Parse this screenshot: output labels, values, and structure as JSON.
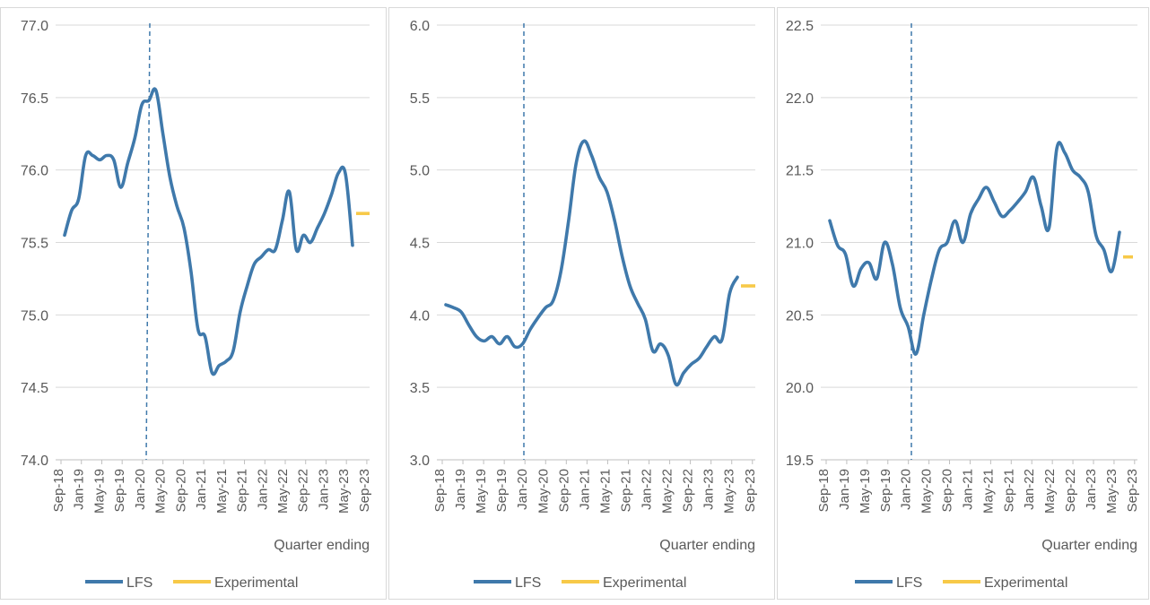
{
  "colors": {
    "lfs": "#3f79ab",
    "experimental": "#f7c948",
    "grid": "#d9d9d9",
    "axis_text": "#595959",
    "vline": "#3f79ab",
    "panel_border": "#d9d9d9"
  },
  "chart_data": [
    {
      "type": "line",
      "title": "",
      "xlabel": "Quarter ending",
      "ylabel": "",
      "ylim": [
        74.0,
        77.0
      ],
      "y_ticks": [
        "74.0",
        "74.5",
        "75.0",
        "75.5",
        "76.0",
        "76.5",
        "77.0"
      ],
      "x_tick_labels": [
        "Sep-18",
        "Jan-19",
        "May-19",
        "Sep-19",
        "Jan-20",
        "May-20",
        "Sep-20",
        "Jan-21",
        "May-21",
        "Sep-21",
        "Jan-22",
        "May-22",
        "Sep-22",
        "Jan-23",
        "May-23",
        "Sep-23"
      ],
      "grid": true,
      "legend_position": "bottom",
      "legend": [
        "LFS",
        "Experimental"
      ],
      "reference_line_at": "Mar-20",
      "series": [
        {
          "name": "LFS",
          "values": [
            75.55,
            75.72,
            75.8,
            76.1,
            76.1,
            76.07,
            76.1,
            76.07,
            75.88,
            76.05,
            76.22,
            76.45,
            76.48,
            76.55,
            76.25,
            75.95,
            75.75,
            75.6,
            75.3,
            74.9,
            74.85,
            74.6,
            74.65,
            74.68,
            74.75,
            75.02,
            75.2,
            75.35,
            75.4,
            75.45,
            75.45,
            75.65,
            75.85,
            75.45,
            75.55,
            75.5,
            75.6,
            75.7,
            75.83,
            75.98,
            75.97,
            75.48
          ]
        },
        {
          "name": "Experimental",
          "values": [
            75.7
          ]
        }
      ]
    },
    {
      "type": "line",
      "title": "",
      "xlabel": "Quarter ending",
      "ylabel": "",
      "ylim": [
        3.0,
        6.0
      ],
      "y_ticks": [
        "3.0",
        "3.5",
        "4.0",
        "4.5",
        "5.0",
        "5.5",
        "6.0"
      ],
      "x_tick_labels": [
        "Sep-18",
        "Jan-19",
        "May-19",
        "Sep-19",
        "Jan-20",
        "May-20",
        "Sep-20",
        "Jan-21",
        "May-21",
        "Sep-21",
        "Jan-22",
        "May-22",
        "Sep-22",
        "Jan-23",
        "May-23",
        "Sep-23"
      ],
      "grid": true,
      "legend_position": "bottom",
      "legend": [
        "LFS",
        "Experimental"
      ],
      "reference_line_at": "Mar-20",
      "series": [
        {
          "name": "LFS",
          "values": [
            4.07,
            4.05,
            4.02,
            3.93,
            3.85,
            3.82,
            3.85,
            3.8,
            3.85,
            3.78,
            3.8,
            3.9,
            3.98,
            4.05,
            4.1,
            4.3,
            4.65,
            5.05,
            5.2,
            5.1,
            4.95,
            4.85,
            4.65,
            4.4,
            4.2,
            4.08,
            3.97,
            3.75,
            3.8,
            3.72,
            3.52,
            3.6,
            3.66,
            3.7,
            3.78,
            3.85,
            3.83,
            4.15,
            4.26
          ]
        },
        {
          "name": "Experimental",
          "values": [
            4.2
          ]
        }
      ]
    },
    {
      "type": "line",
      "title": "",
      "xlabel": "Quarter ending",
      "ylabel": "",
      "ylim": [
        19.5,
        22.5
      ],
      "y_ticks": [
        "19.5",
        "20.0",
        "20.5",
        "21.0",
        "21.5",
        "22.0",
        "22.5"
      ],
      "x_tick_labels": [
        "Sep-18",
        "Jan-19",
        "May-19",
        "Sep-19",
        "Jan-20",
        "May-20",
        "Sep-20",
        "Jan-21",
        "May-21",
        "Sep-21",
        "Jan-22",
        "May-22",
        "Sep-22",
        "Jan-23",
        "May-23",
        "Sep-23"
      ],
      "grid": true,
      "legend_position": "bottom",
      "legend": [
        "LFS",
        "Experimental"
      ],
      "reference_line_at": "Mar-20",
      "series": [
        {
          "name": "LFS",
          "values": [
            21.15,
            20.98,
            20.92,
            20.7,
            20.82,
            20.86,
            20.75,
            21.0,
            20.85,
            20.55,
            20.42,
            20.23,
            20.5,
            20.75,
            20.95,
            21.0,
            21.15,
            21.0,
            21.2,
            21.3,
            21.38,
            21.28,
            21.18,
            21.22,
            21.28,
            21.35,
            21.45,
            21.25,
            21.1,
            21.65,
            21.62,
            21.5,
            21.45,
            21.35,
            21.05,
            20.95,
            20.8,
            21.07
          ]
        },
        {
          "name": "Experimental",
          "values": [
            20.9
          ]
        }
      ]
    }
  ]
}
